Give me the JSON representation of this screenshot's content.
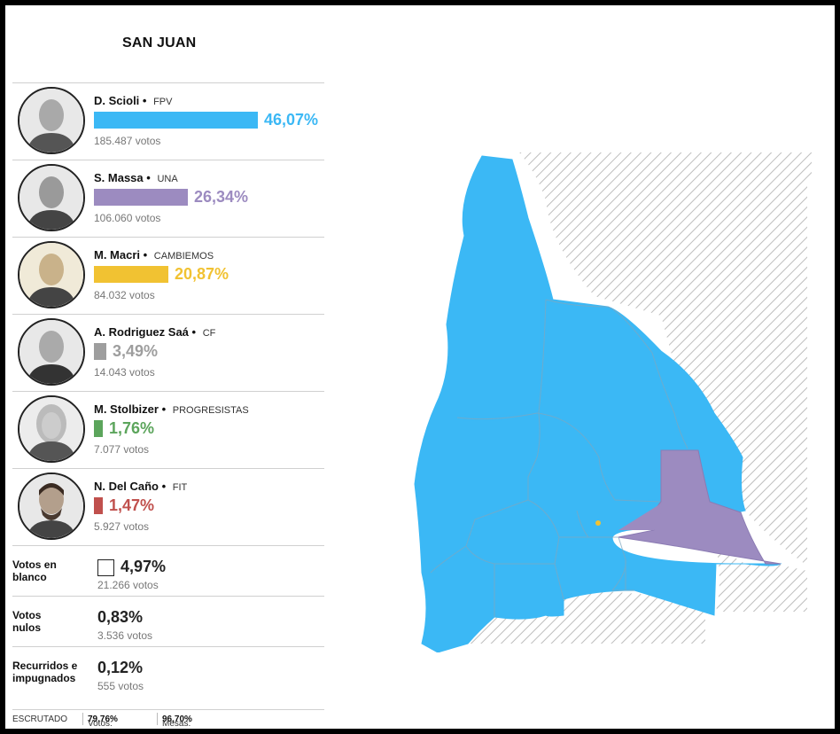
{
  "title": "SAN JUAN",
  "candidates": [
    {
      "name": "D. Scioli",
      "party": "FPV",
      "percent": "46,07%",
      "percent_value": 46.07,
      "votes": "185.487 votos",
      "color": "#3bb8f5"
    },
    {
      "name": "S. Massa",
      "party": "UNA",
      "percent": "26,34%",
      "percent_value": 26.34,
      "votes": "106.060 votos",
      "color": "#9c8bc0"
    },
    {
      "name": "M. Macri",
      "party": "CAMBIEMOS",
      "percent": "20,87%",
      "percent_value": 20.87,
      "votes": "84.032 votos",
      "color": "#f1c232"
    },
    {
      "name": "A. Rodriguez Saá",
      "party": "CF",
      "percent": "3,49%",
      "percent_value": 3.49,
      "votes": "14.043 votos",
      "color": "#9e9e9e"
    },
    {
      "name": "M. Stolbizer",
      "party": "PROGRESISTAS",
      "percent": "1,76%",
      "percent_value": 1.76,
      "votes": "7.077 votos",
      "color": "#5ca55c"
    },
    {
      "name": "N. Del Caño",
      "party": "FIT",
      "percent": "1,47%",
      "percent_value": 1.47,
      "votes": "5.927 votos",
      "color": "#c0504d"
    }
  ],
  "blank": {
    "label": "Votos en blanco",
    "percent": "4,97%",
    "votes": "21.266 votos"
  },
  "null": {
    "label": "Votos nulos",
    "percent": "0,83%",
    "votes": "3.536 votos"
  },
  "contested": {
    "label": "Recurridos e impugnados",
    "percent": "0,12%",
    "votes": "555 votos"
  },
  "footer": {
    "escrutado": "ESCRUTADO",
    "votos_label": "Votos:",
    "votos_value": "79,76%",
    "mesas_label": "Mesas:",
    "mesas_value": "96,70%"
  },
  "map": {
    "region_colors": {
      "fpv": "#3bb8f5",
      "una": "#9c8bc0",
      "cambiemos": "#f1c232"
    }
  }
}
